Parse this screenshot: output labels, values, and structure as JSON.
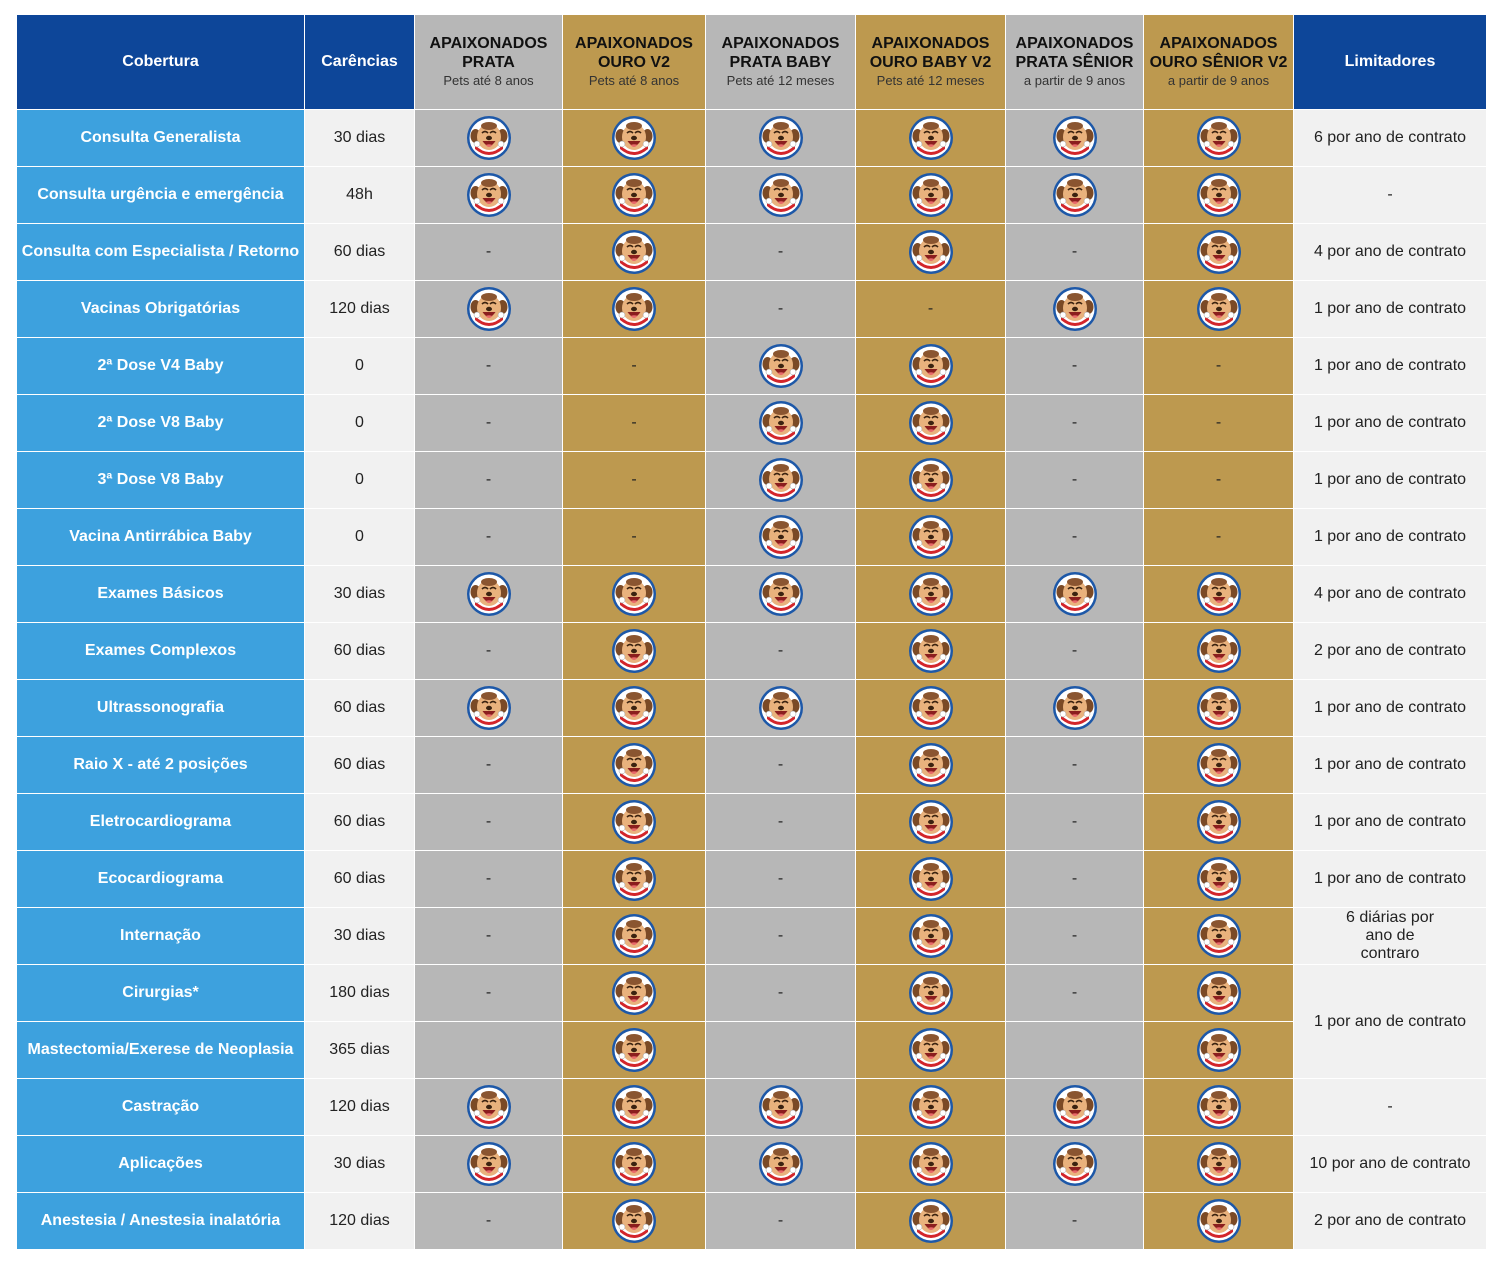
{
  "header": {
    "cobertura": "Cobertura",
    "carencias": "Carências",
    "limitadores": "Limitadores",
    "plans": [
      {
        "name_line1": "APAIXONADOS",
        "name_line2": "PRATA",
        "sub": "Pets até 8 anos",
        "tone": "silver"
      },
      {
        "name_line1": "APAIXONADOS",
        "name_line2": "OURO V2",
        "sub": "Pets até 8 anos",
        "tone": "gold"
      },
      {
        "name_line1": "APAIXONADOS",
        "name_line2": "PRATA BABY",
        "sub": "Pets até 12 meses",
        "tone": "silver"
      },
      {
        "name_line1": "APAIXONADOS",
        "name_line2": "OURO BABY V2",
        "sub": "Pets até 12 meses",
        "tone": "gold"
      },
      {
        "name_line1": "APAIXONADOS",
        "name_line2": "PRATA SÊNIOR",
        "sub": "a partir de 9 anos",
        "tone": "silver"
      },
      {
        "name_line1": "APAIXONADOS",
        "name_line2": "OURO SÊNIOR V2",
        "sub": "a partir de 9 anos",
        "tone": "gold"
      }
    ]
  },
  "colors": {
    "header_blue": "#0d4699",
    "coverage_blue": "#3da1de",
    "silver": "#b7b7b7",
    "gold": "#bd994f",
    "light_gray": "#f1f1f1"
  },
  "icon": "dog-face-icon",
  "dash": "-",
  "rows": [
    {
      "cobertura": "Consulta Generalista",
      "carencia": "30 dias",
      "plans": [
        true,
        true,
        true,
        true,
        true,
        true
      ],
      "limitador": "6 por ano de contrato"
    },
    {
      "cobertura": "Consulta urgência e emergência",
      "carencia": "48h",
      "plans": [
        true,
        true,
        true,
        true,
        true,
        true
      ],
      "limitador": "-"
    },
    {
      "cobertura": "Consulta com Especialista / Retorno",
      "carencia": "60 dias",
      "plans": [
        false,
        true,
        false,
        true,
        false,
        true
      ],
      "limitador": "4 por ano de contrato"
    },
    {
      "cobertura": "Vacinas Obrigatórias",
      "carencia": "120 dias",
      "plans": [
        true,
        true,
        false,
        false,
        true,
        true
      ],
      "limitador": "1 por ano de contrato"
    },
    {
      "cobertura": "2ª Dose V4 Baby",
      "carencia": "0",
      "plans": [
        false,
        false,
        true,
        true,
        false,
        false
      ],
      "limitador": "1 por ano de contrato"
    },
    {
      "cobertura": "2ª Dose V8 Baby",
      "carencia": "0",
      "plans": [
        false,
        false,
        true,
        true,
        false,
        false
      ],
      "limitador": "1 por ano de contrato"
    },
    {
      "cobertura": "3ª Dose V8 Baby",
      "carencia": "0",
      "plans": [
        false,
        false,
        true,
        true,
        false,
        false
      ],
      "limitador": "1 por ano de contrato"
    },
    {
      "cobertura": "Vacina Antirrábica Baby",
      "carencia": "0",
      "plans": [
        false,
        false,
        true,
        true,
        false,
        false
      ],
      "limitador": "1 por ano de contrato"
    },
    {
      "cobertura": "Exames Básicos",
      "carencia": "30 dias",
      "plans": [
        true,
        true,
        true,
        true,
        true,
        true
      ],
      "limitador": "4 por ano de contrato"
    },
    {
      "cobertura": "Exames Complexos",
      "carencia": "60 dias",
      "plans": [
        false,
        true,
        false,
        true,
        false,
        true
      ],
      "limitador": "2 por ano de contrato"
    },
    {
      "cobertura": "Ultrassonografia",
      "carencia": "60 dias",
      "plans": [
        true,
        true,
        true,
        true,
        true,
        true
      ],
      "limitador": "1 por ano de contrato"
    },
    {
      "cobertura": "Raio X - até 2 posições",
      "carencia": "60 dias",
      "plans": [
        false,
        true,
        false,
        true,
        false,
        true
      ],
      "limitador": "1 por ano de contrato"
    },
    {
      "cobertura": "Eletrocardiograma",
      "carencia": "60 dias",
      "plans": [
        false,
        true,
        false,
        true,
        false,
        true
      ],
      "limitador": "1 por ano de contrato"
    },
    {
      "cobertura": "Ecocardiograma",
      "carencia": "60 dias",
      "plans": [
        false,
        true,
        false,
        true,
        false,
        true
      ],
      "limitador": "1 por ano de contrato"
    },
    {
      "cobertura": "Internação",
      "carencia": "30 dias",
      "plans": [
        false,
        true,
        false,
        true,
        false,
        true
      ],
      "limitador": "6 diárias por ano de contraro"
    },
    {
      "cobertura": "Cirurgias*",
      "carencia": "180 dias",
      "plans": [
        false,
        true,
        false,
        true,
        false,
        true
      ],
      "limitador": "1 por ano de contrato",
      "limitador_rowspan": 2
    },
    {
      "cobertura": "Mastectomia/Exerese de Neoplasia",
      "carencia": "365 dias",
      "plans": [
        "blank",
        true,
        "blank",
        true,
        "blank",
        true
      ],
      "limitador": null
    },
    {
      "cobertura": "Castração",
      "carencia": "120 dias",
      "plans": [
        true,
        true,
        true,
        true,
        true,
        true
      ],
      "limitador": "-"
    },
    {
      "cobertura": "Aplicações",
      "carencia": "30 dias",
      "plans": [
        true,
        true,
        true,
        true,
        true,
        true
      ],
      "limitador": "10 por ano de contrato"
    },
    {
      "cobertura": "Anestesia / Anestesia inalatória",
      "carencia": "120 dias",
      "plans": [
        false,
        true,
        false,
        true,
        false,
        true
      ],
      "limitador": "2 por ano de contrato"
    }
  ]
}
